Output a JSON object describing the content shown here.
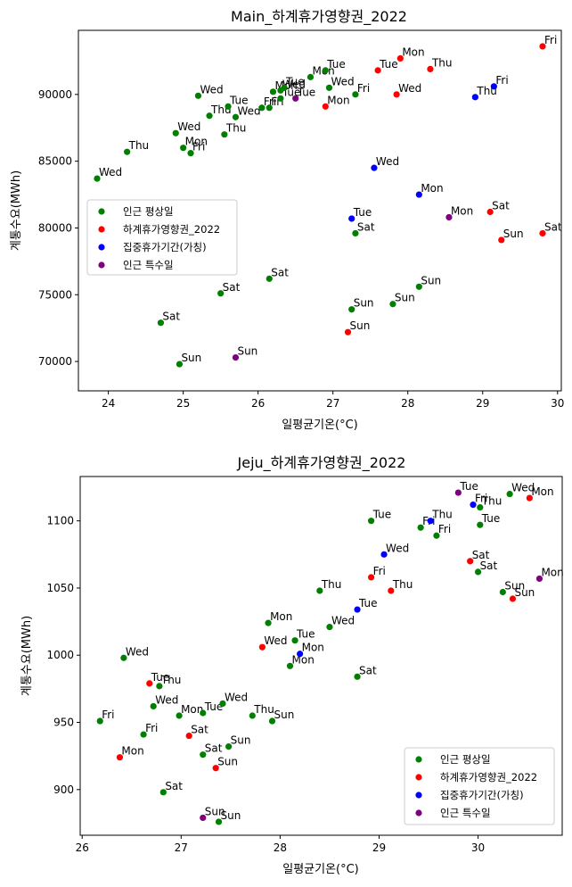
{
  "colors": {
    "인근 평상일": "#008000",
    "하계휴가영향권_2022": "#ff0000",
    "집중휴가기간(가칭)": "#0000ff",
    "인근 특수일": "#800080"
  },
  "chart_data": [
    {
      "type": "scatter",
      "title": "Main_하계휴가영향권_2022",
      "xlabel": "일평균기온(°C)",
      "ylabel": "계통수요(MWh)",
      "xlim": [
        23.6,
        30.05
      ],
      "ylim": [
        67800,
        94800
      ],
      "xticks": [
        24,
        25,
        26,
        27,
        28,
        29,
        30
      ],
      "yticks": [
        70000,
        75000,
        80000,
        85000,
        90000
      ],
      "legend_position": "center-left",
      "legend": [
        "인근 평상일",
        "하계휴가영향권_2022",
        "집중휴가기간(가칭)",
        "인근 특수일"
      ],
      "series": [
        {
          "name": "인근 평상일",
          "points": [
            {
              "x": 23.85,
              "y": 83700,
              "label": "Wed"
            },
            {
              "x": 24.25,
              "y": 85700,
              "label": "Thu"
            },
            {
              "x": 24.7,
              "y": 72900,
              "label": "Sat"
            },
            {
              "x": 24.9,
              "y": 87100,
              "label": "Wed"
            },
            {
              "x": 24.95,
              "y": 69800,
              "label": "Sun"
            },
            {
              "x": 25.0,
              "y": 86000,
              "label": "Mon"
            },
            {
              "x": 25.1,
              "y": 85600,
              "label": "Fri"
            },
            {
              "x": 25.2,
              "y": 89900,
              "label": "Wed"
            },
            {
              "x": 25.35,
              "y": 88400,
              "label": "Thu"
            },
            {
              "x": 25.5,
              "y": 75100,
              "label": "Sat"
            },
            {
              "x": 25.55,
              "y": 87000,
              "label": "Thu"
            },
            {
              "x": 25.6,
              "y": 89100,
              "label": "Tue"
            },
            {
              "x": 25.7,
              "y": 88300,
              "label": "Wed"
            },
            {
              "x": 26.05,
              "y": 89000,
              "label": "Fri"
            },
            {
              "x": 26.15,
              "y": 89000,
              "label": "Fri"
            },
            {
              "x": 26.15,
              "y": 76200,
              "label": "Sat"
            },
            {
              "x": 26.2,
              "y": 90200,
              "label": "Mon"
            },
            {
              "x": 26.3,
              "y": 90300,
              "label": "Wed"
            },
            {
              "x": 26.3,
              "y": 89700,
              "label": "Tue"
            },
            {
              "x": 26.35,
              "y": 90500,
              "label": "Tue"
            },
            {
              "x": 26.7,
              "y": 91300,
              "label": "Mon"
            },
            {
              "x": 26.9,
              "y": 91800,
              "label": "Tue"
            },
            {
              "x": 26.95,
              "y": 90500,
              "label": "Wed"
            },
            {
              "x": 27.25,
              "y": 73900,
              "label": "Sun"
            },
            {
              "x": 27.3,
              "y": 90000,
              "label": "Fri"
            },
            {
              "x": 27.3,
              "y": 79600,
              "label": "Sat"
            },
            {
              "x": 27.8,
              "y": 74300,
              "label": "Sun"
            },
            {
              "x": 28.15,
              "y": 75600,
              "label": "Sun"
            }
          ]
        },
        {
          "name": "하계휴가영향권_2022",
          "points": [
            {
              "x": 26.9,
              "y": 89100,
              "label": "Mon"
            },
            {
              "x": 27.2,
              "y": 72200,
              "label": "Sun"
            },
            {
              "x": 27.6,
              "y": 91800,
              "label": "Tue"
            },
            {
              "x": 27.85,
              "y": 90000,
              "label": "Wed"
            },
            {
              "x": 27.9,
              "y": 92700,
              "label": "Mon"
            },
            {
              "x": 28.3,
              "y": 91900,
              "label": "Thu"
            },
            {
              "x": 29.1,
              "y": 81200,
              "label": "Sat"
            },
            {
              "x": 29.25,
              "y": 79100,
              "label": "Sun"
            },
            {
              "x": 29.8,
              "y": 79600,
              "label": "Sat"
            },
            {
              "x": 29.8,
              "y": 93600,
              "label": "Fri"
            }
          ]
        },
        {
          "name": "집중휴가기간(가칭)",
          "points": [
            {
              "x": 27.25,
              "y": 80700,
              "label": "Tue"
            },
            {
              "x": 27.55,
              "y": 84500,
              "label": "Wed"
            },
            {
              "x": 28.15,
              "y": 82500,
              "label": "Mon"
            },
            {
              "x": 28.9,
              "y": 89800,
              "label": "Thu"
            },
            {
              "x": 29.15,
              "y": 90600,
              "label": "Fri"
            }
          ]
        },
        {
          "name": "인근 특수일",
          "points": [
            {
              "x": 25.7,
              "y": 70300,
              "label": "Sun"
            },
            {
              "x": 26.5,
              "y": 89700,
              "label": "Tue"
            },
            {
              "x": 28.55,
              "y": 80800,
              "label": "Mon"
            }
          ]
        }
      ]
    },
    {
      "type": "scatter",
      "title": "Jeju_하계휴가영향권_2022",
      "xlabel": "일평균기온(°C)",
      "ylabel": "계통수요(MWh)",
      "xlim": [
        25.98,
        30.85
      ],
      "ylim": [
        866,
        1133
      ],
      "xticks": [
        26,
        27,
        28,
        29,
        30
      ],
      "yticks": [
        900,
        950,
        1000,
        1050,
        1100
      ],
      "legend_position": "lower-right",
      "legend": [
        "인근 평상일",
        "하계휴가영향권_2022",
        "집중휴가기간(가칭)",
        "인근 특수일"
      ],
      "series": [
        {
          "name": "인근 평상일",
          "points": [
            {
              "x": 26.18,
              "y": 951,
              "label": "Fri"
            },
            {
              "x": 26.42,
              "y": 998,
              "label": "Wed"
            },
            {
              "x": 26.62,
              "y": 941,
              "label": "Fri"
            },
            {
              "x": 26.72,
              "y": 962,
              "label": "Wed"
            },
            {
              "x": 26.78,
              "y": 977,
              "label": "Thu"
            },
            {
              "x": 26.82,
              "y": 898,
              "label": "Sat"
            },
            {
              "x": 26.98,
              "y": 955,
              "label": "Mon"
            },
            {
              "x": 27.22,
              "y": 957,
              "label": "Tue"
            },
            {
              "x": 27.22,
              "y": 926,
              "label": "Sat"
            },
            {
              "x": 27.42,
              "y": 964,
              "label": "Wed"
            },
            {
              "x": 27.38,
              "y": 876,
              "label": "Sun"
            },
            {
              "x": 27.48,
              "y": 932,
              "label": "Sun"
            },
            {
              "x": 27.72,
              "y": 955,
              "label": "Thu"
            },
            {
              "x": 27.88,
              "y": 1024,
              "label": "Mon"
            },
            {
              "x": 27.92,
              "y": 951,
              "label": "Sun"
            },
            {
              "x": 28.1,
              "y": 992,
              "label": "Mon"
            },
            {
              "x": 28.15,
              "y": 1011,
              "label": "Tue"
            },
            {
              "x": 28.4,
              "y": 1048,
              "label": "Thu"
            },
            {
              "x": 28.5,
              "y": 1021,
              "label": "Wed"
            },
            {
              "x": 28.78,
              "y": 984,
              "label": "Sat"
            },
            {
              "x": 28.92,
              "y": 1100,
              "label": "Tue"
            },
            {
              "x": 29.42,
              "y": 1095,
              "label": "Fri"
            },
            {
              "x": 29.58,
              "y": 1089,
              "label": "Fri"
            },
            {
              "x": 30.0,
              "y": 1062,
              "label": "Sat"
            },
            {
              "x": 30.02,
              "y": 1097,
              "label": "Tue"
            },
            {
              "x": 30.02,
              "y": 1110,
              "label": "Thu"
            },
            {
              "x": 30.25,
              "y": 1047,
              "label": "Sun"
            },
            {
              "x": 30.32,
              "y": 1120,
              "label": "Wed"
            }
          ]
        },
        {
          "name": "하계휴가영향권_2022",
          "points": [
            {
              "x": 26.38,
              "y": 924,
              "label": "Mon"
            },
            {
              "x": 26.68,
              "y": 979,
              "label": "Tue"
            },
            {
              "x": 27.08,
              "y": 940,
              "label": "Sat"
            },
            {
              "x": 27.35,
              "y": 916,
              "label": "Sun"
            },
            {
              "x": 27.82,
              "y": 1006,
              "label": "Wed"
            },
            {
              "x": 28.92,
              "y": 1058,
              "label": "Fri"
            },
            {
              "x": 29.12,
              "y": 1048,
              "label": "Thu"
            },
            {
              "x": 29.92,
              "y": 1070,
              "label": "Sat"
            },
            {
              "x": 30.35,
              "y": 1042,
              "label": "Sun"
            },
            {
              "x": 30.52,
              "y": 1117,
              "label": "Mon"
            }
          ]
        },
        {
          "name": "집중휴가기간(가칭)",
          "points": [
            {
              "x": 28.2,
              "y": 1001,
              "label": "Mon"
            },
            {
              "x": 28.78,
              "y": 1034,
              "label": "Tue"
            },
            {
              "x": 29.05,
              "y": 1075,
              "label": "Wed"
            },
            {
              "x": 29.52,
              "y": 1100,
              "label": "Thu"
            },
            {
              "x": 29.95,
              "y": 1112,
              "label": "Fri"
            }
          ]
        },
        {
          "name": "인근 특수일",
          "points": [
            {
              "x": 27.22,
              "y": 879,
              "label": "Sun"
            },
            {
              "x": 29.8,
              "y": 1121,
              "label": "Tue"
            },
            {
              "x": 30.62,
              "y": 1057,
              "label": "Mon"
            }
          ]
        }
      ]
    }
  ]
}
